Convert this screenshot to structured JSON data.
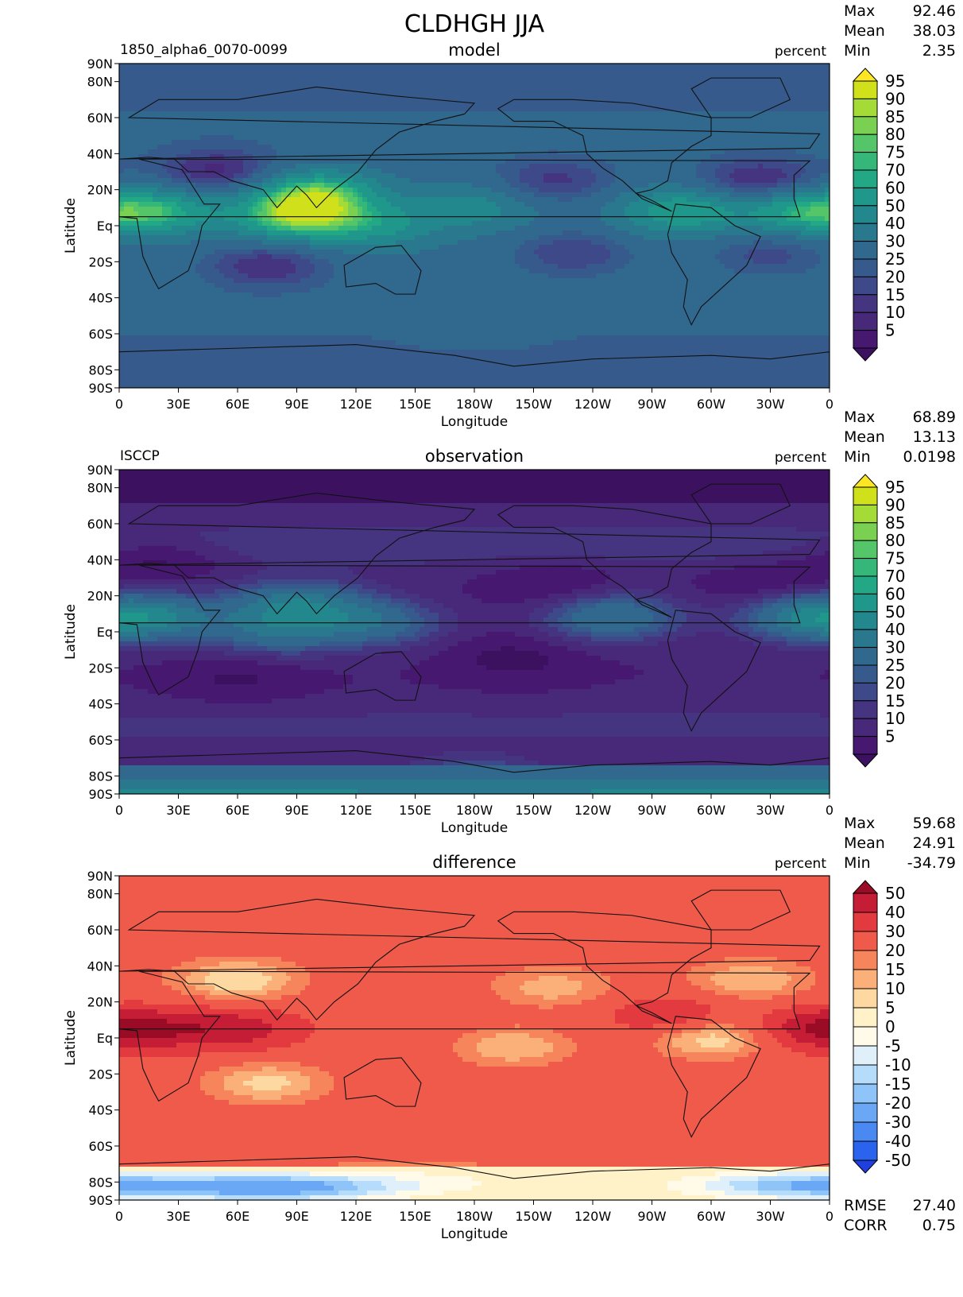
{
  "figure": {
    "title": "CLDHGH JJA"
  },
  "colors": {
    "viridis_levels": [
      "#3c1260",
      "#46186f",
      "#482878",
      "#453581",
      "#3e4989",
      "#375a8c",
      "#31688e",
      "#2a788e",
      "#23888e",
      "#1f988b",
      "#22a884",
      "#35b779",
      "#54c568",
      "#7ad151",
      "#a5db36",
      "#d0e11c",
      "#fde725"
    ],
    "diff_levels": [
      "#1f3fe0",
      "#2a64ee",
      "#4a88f2",
      "#6aa8f5",
      "#8ec4f8",
      "#b5dcfa",
      "#dff0fb",
      "#fffbe8",
      "#fff1c8",
      "#fdd8a0",
      "#fbb07a",
      "#f7855c",
      "#f05a4a",
      "#e23a3f",
      "#c41d35",
      "#9a0b26"
    ],
    "continent": "#111111"
  },
  "chart_data": [
    {
      "type": "heatmap",
      "panel": "model",
      "center_title": "model",
      "left_title": "1850_alpha6_0070-0099",
      "right_title": "percent",
      "stats": {
        "max_label": "Max",
        "max": "92.46",
        "mean_label": "Mean",
        "mean": "38.03",
        "min_label": "Min",
        "min": "2.35"
      },
      "xlabel": "Longitude",
      "ylabel": "Latitude",
      "x_ticks": [
        "0",
        "30E",
        "60E",
        "90E",
        "120E",
        "150E",
        "180W",
        "150W",
        "120W",
        "90W",
        "60W",
        "30W",
        "0"
      ],
      "y_ticks": [
        "90N",
        "80N",
        "60N",
        "40N",
        "20N",
        "Eq",
        "20S",
        "40S",
        "60S",
        "80S",
        "90S"
      ],
      "colorbar_levels": [
        "95",
        "90",
        "85",
        "80",
        "75",
        "70",
        "60",
        "50",
        "40",
        "30",
        "25",
        "20",
        "15",
        "10",
        "5"
      ],
      "features": [
        {
          "lon": 90,
          "lat": 5,
          "value": 85
        },
        {
          "lon": 100,
          "lat": 18,
          "value": 80
        },
        {
          "lon": 20,
          "lat": 8,
          "value": 72
        },
        {
          "lon": 285,
          "lat": 8,
          "value": 70
        },
        {
          "lon": 345,
          "lat": 8,
          "value": 70
        },
        {
          "lon": 130,
          "lat": 0,
          "value": 60
        },
        {
          "lon": 180,
          "lat": 10,
          "value": 55
        },
        {
          "lon": 50,
          "lat": 30,
          "value": 12
        },
        {
          "lon": 220,
          "lat": 25,
          "value": 18
        },
        {
          "lon": 325,
          "lat": 25,
          "value": 12
        },
        {
          "lon": 75,
          "lat": -22,
          "value": 15
        },
        {
          "lon": 230,
          "lat": -15,
          "value": 20
        },
        {
          "lon": 330,
          "lat": -15,
          "value": 22
        },
        {
          "lon": 180,
          "lat": -50,
          "value": 40
        }
      ]
    },
    {
      "type": "heatmap",
      "panel": "observation",
      "center_title": "observation",
      "left_title": "ISCCP",
      "right_title": "percent",
      "stats": {
        "max_label": "Max",
        "max": "68.89",
        "mean_label": "Mean",
        "mean": "13.13",
        "min_label": "Min",
        "min": "0.0198"
      },
      "xlabel": "Longitude",
      "ylabel": "Latitude",
      "x_ticks": [
        "0",
        "30E",
        "60E",
        "90E",
        "120E",
        "150E",
        "180W",
        "150W",
        "120W",
        "90W",
        "60W",
        "30W",
        "0"
      ],
      "y_ticks": [
        "90N",
        "80N",
        "60N",
        "40N",
        "20N",
        "Eq",
        "20S",
        "40S",
        "60S",
        "80S",
        "90S"
      ],
      "colorbar_levels": [
        "95",
        "90",
        "85",
        "80",
        "75",
        "70",
        "60",
        "50",
        "40",
        "30",
        "25",
        "20",
        "15",
        "10",
        "5"
      ],
      "features": [
        {
          "lon": 90,
          "lat": 15,
          "value": 45
        },
        {
          "lon": 80,
          "lat": 0,
          "value": 35
        },
        {
          "lon": 130,
          "lat": 5,
          "value": 35
        },
        {
          "lon": 20,
          "lat": 8,
          "value": 40
        },
        {
          "lon": 250,
          "lat": 8,
          "value": 40
        },
        {
          "lon": 350,
          "lat": 8,
          "value": 45
        },
        {
          "lon": 220,
          "lat": 25,
          "value": 4
        },
        {
          "lon": 330,
          "lat": 25,
          "value": 4
        },
        {
          "lon": 200,
          "lat": -15,
          "value": 3
        },
        {
          "lon": 60,
          "lat": -25,
          "value": 4
        },
        {
          "lon": 20,
          "lat": 38,
          "value": 5
        },
        {
          "lon": 180,
          "lat": -85,
          "value": 40
        }
      ]
    },
    {
      "type": "heatmap",
      "panel": "difference",
      "center_title": "difference",
      "left_title": "",
      "right_title": "percent",
      "stats": {
        "max_label": "Max",
        "max": "59.68",
        "mean_label": "Mean",
        "mean": "24.91",
        "min_label": "Min",
        "min": "-34.79"
      },
      "bottom_stats": {
        "rmse_label": "RMSE",
        "rmse": "27.40",
        "corr_label": "CORR",
        "corr": "0.75"
      },
      "xlabel": "Longitude",
      "ylabel": "Latitude",
      "x_ticks": [
        "0",
        "30E",
        "60E",
        "90E",
        "120E",
        "150E",
        "180W",
        "150W",
        "120W",
        "90W",
        "60W",
        "30W",
        "0"
      ],
      "y_ticks": [
        "90N",
        "80N",
        "60N",
        "40N",
        "20N",
        "Eq",
        "20S",
        "40S",
        "60S",
        "80S",
        "90S"
      ],
      "colorbar_levels": [
        "50",
        "40",
        "30",
        "20",
        "15",
        "10",
        "5",
        "0",
        "-5",
        "-10",
        "-15",
        "-20",
        "-30",
        "-40",
        "-50"
      ],
      "features": [
        {
          "lon": 60,
          "lat": 5,
          "value": 45
        },
        {
          "lon": 355,
          "lat": 5,
          "value": 48
        },
        {
          "lon": 20,
          "lat": 5,
          "value": 40
        },
        {
          "lon": 280,
          "lat": 12,
          "value": 40
        },
        {
          "lon": 60,
          "lat": 32,
          "value": 5
        },
        {
          "lon": 220,
          "lat": 28,
          "value": 12
        },
        {
          "lon": 320,
          "lat": 32,
          "value": 10
        },
        {
          "lon": 200,
          "lat": -5,
          "value": 10
        },
        {
          "lon": 75,
          "lat": -25,
          "value": 8
        },
        {
          "lon": 300,
          "lat": 0,
          "value": 5
        },
        {
          "lon": 80,
          "lat": -83,
          "value": -25
        },
        {
          "lon": 160,
          "lat": -80,
          "value": 0
        },
        {
          "lon": 350,
          "lat": -82,
          "value": -20
        }
      ]
    }
  ]
}
